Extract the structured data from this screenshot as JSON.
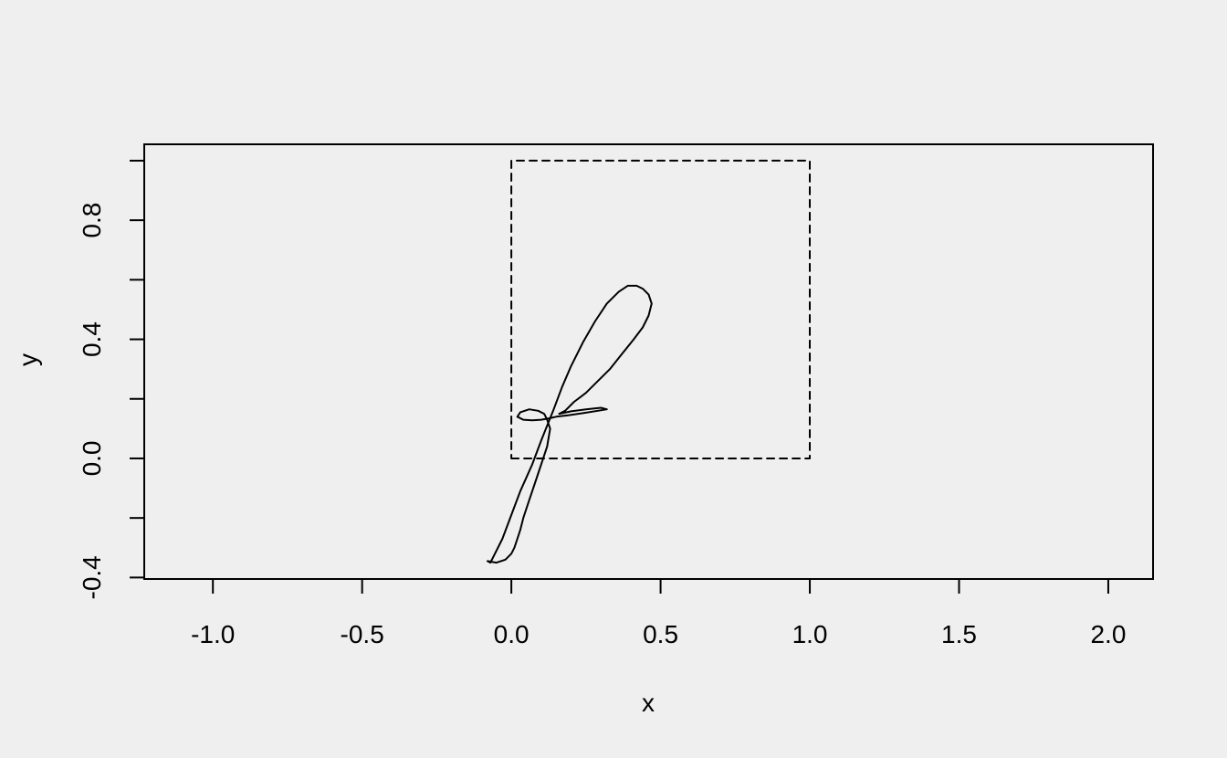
{
  "chart_data": {
    "type": "line",
    "title": "",
    "xlabel": "x",
    "ylabel": "y",
    "xlim": [
      -1.23,
      2.15
    ],
    "ylim": [
      -0.405,
      1.055
    ],
    "x_ticks": [
      -1.0,
      -0.5,
      0.0,
      0.5,
      1.0,
      1.5,
      2.0
    ],
    "x_tick_labels": [
      "-1.0",
      "-0.5",
      "0.0",
      "0.5",
      "1.0",
      "1.5",
      "2.0"
    ],
    "y_ticks": [
      -0.4,
      -0.2,
      0.0,
      0.2,
      0.4,
      0.6,
      0.8,
      1.0
    ],
    "y_tick_labels": [
      "-0.4",
      "",
      "0.0",
      "",
      "0.4",
      "",
      "0.8",
      ""
    ],
    "grid": false,
    "series": [
      {
        "style": "dashed",
        "x": [
          0,
          1,
          1,
          0,
          0
        ],
        "y": [
          0,
          0,
          1,
          1,
          0
        ]
      },
      {
        "style": "solid",
        "x": [
          -0.07,
          -0.03,
          0.0,
          0.03,
          0.07,
          0.1,
          0.12,
          0.14,
          0.17,
          0.2,
          0.24,
          0.28,
          0.32,
          0.36,
          0.39,
          0.42,
          0.44,
          0.46,
          0.47,
          0.46,
          0.44,
          0.41,
          0.37,
          0.33,
          0.29,
          0.25,
          0.21,
          0.18,
          0.16,
          0.2,
          0.25,
          0.3,
          0.32,
          0.29,
          0.24,
          0.19,
          0.15,
          0.13,
          0.1,
          0.07,
          0.04,
          0.02,
          0.03,
          0.06,
          0.09,
          0.11,
          0.12,
          0.13,
          0.12,
          0.1,
          0.08,
          0.06,
          0.04,
          0.03,
          0.02,
          0.01,
          0.0,
          -0.02,
          -0.05,
          -0.08,
          -0.07
        ],
        "y": [
          -0.35,
          -0.27,
          -0.19,
          -0.11,
          -0.02,
          0.06,
          0.11,
          0.16,
          0.24,
          0.31,
          0.39,
          0.46,
          0.52,
          0.56,
          0.58,
          0.58,
          0.57,
          0.55,
          0.52,
          0.48,
          0.44,
          0.4,
          0.35,
          0.3,
          0.26,
          0.22,
          0.19,
          0.16,
          0.15,
          0.158,
          0.165,
          0.17,
          0.165,
          0.16,
          0.152,
          0.145,
          0.14,
          0.135,
          0.13,
          0.128,
          0.13,
          0.14,
          0.155,
          0.165,
          0.16,
          0.15,
          0.13,
          0.1,
          0.04,
          -0.02,
          -0.08,
          -0.14,
          -0.2,
          -0.24,
          -0.27,
          -0.3,
          -0.32,
          -0.34,
          -0.35,
          -0.345,
          -0.35
        ]
      }
    ]
  }
}
